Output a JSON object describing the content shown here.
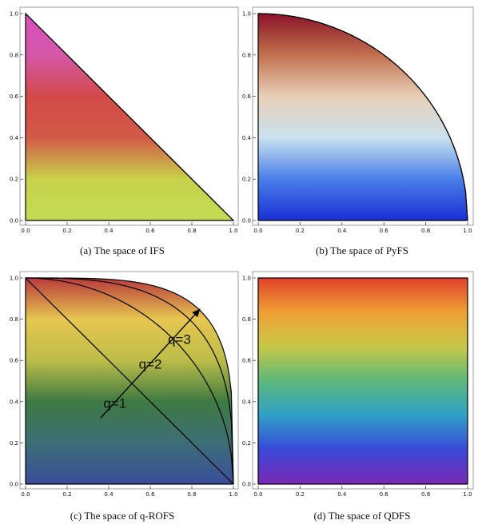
{
  "panels": [
    {
      "caption": "(a)  The space of IFS",
      "region": "triangle",
      "gradient_colors": [
        "#c2dc54",
        "#c8d14a",
        "#d25a48",
        "#d24a48",
        "#d458a8",
        "#d84ec0"
      ],
      "boundary_lines": [
        {
          "from": [
            0,
            1
          ],
          "to": [
            1,
            0
          ]
        }
      ]
    },
    {
      "caption": "(b)  The space of PyFS",
      "region": "quarter-circle",
      "gradient_colors": [
        "#1a2fd4",
        "#4a7ee8",
        "#c9e2ee",
        "#e8cfb8",
        "#c2704e",
        "#8a1428"
      ],
      "boundary_curves": [
        2
      ]
    },
    {
      "caption": "(c)  The space of q-ROFS",
      "region": "q-curve",
      "gradient_colors": [
        "#3a4d9a",
        "#3d6e76",
        "#3e7a42",
        "#bcbd48",
        "#e6c650",
        "#b83a3c"
      ],
      "boundary_lines": [
        {
          "from": [
            0,
            1
          ],
          "to": [
            1,
            0
          ]
        }
      ],
      "boundary_curves": [
        2,
        3
      ],
      "arrow": {
        "from": [
          0.36,
          0.32
        ],
        "to": [
          0.84,
          0.85
        ]
      },
      "q_labels": [
        {
          "text": "q=1",
          "at": [
            0.43,
            0.37
          ]
        },
        {
          "text": "q=2",
          "at": [
            0.6,
            0.56
          ]
        },
        {
          "text": "q=3",
          "at": [
            0.74,
            0.68
          ]
        }
      ]
    },
    {
      "caption": "(d)  The space of QDFS",
      "region": "square",
      "gradient_colors": [
        "#7a28b4",
        "#3a48d8",
        "#30a0c8",
        "#5cb87a",
        "#c8c848",
        "#f0a034",
        "#e0402c"
      ]
    }
  ],
  "axes": {
    "x_ticks": [
      "0.0",
      "0.2",
      "0.4",
      "0.6",
      "0.8",
      "1.0"
    ],
    "y_ticks": [
      "0.0",
      "0.2",
      "0.4",
      "0.6",
      "0.8",
      "1.0"
    ]
  }
}
